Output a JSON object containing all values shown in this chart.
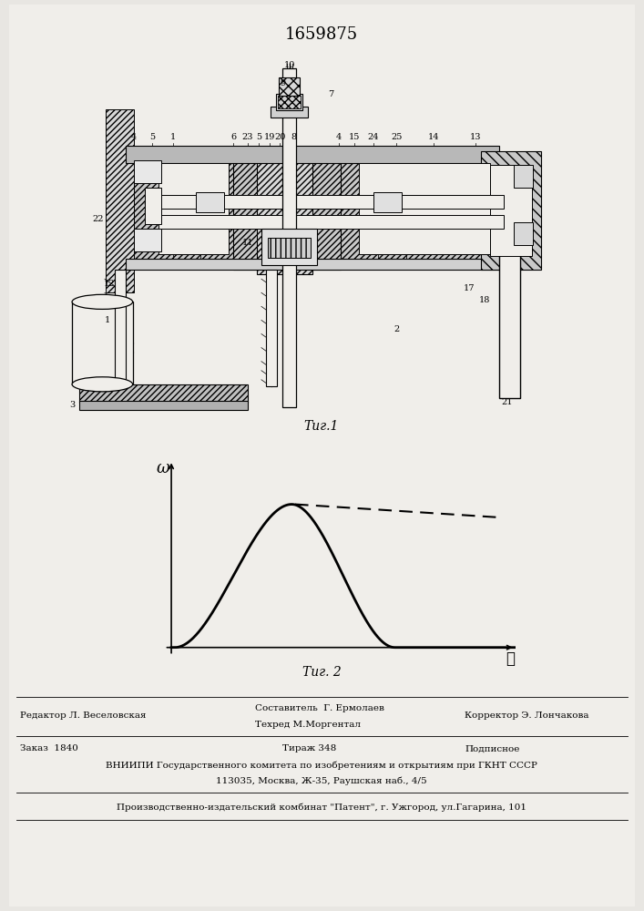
{
  "title_text": "1659875",
  "fig1_caption": "Τиг.1",
  "fig2_caption": "Τиг. 2",
  "omega_label": "ω",
  "t_label": "ℓ",
  "background_color": "#e8e6e2",
  "page_color": "#f0eeea",
  "footer_line1_left": "Редактор Л. Веселовская",
  "footer_line1_center1": "Составитель  Г. Ермолаев",
  "footer_line1_center2": "Техред М.Моргентал",
  "footer_line1_right": "Корректор Э. Лончакова",
  "footer_line2_left": "Заказ  1840",
  "footer_line2_center": "Тираж 348",
  "footer_line2_right": "Подписное",
  "footer_line3": "ВНИИПИ Государственного комитета по изобретениям и открытиям при ГКНТ СССР",
  "footer_line4": "113035, Москва, Ж-35, Раушская наб., 4/5",
  "footer_line5": "Производственно-издательский комбинат \"Патент\", г. Ужгород, ул.Гагарина, 101"
}
